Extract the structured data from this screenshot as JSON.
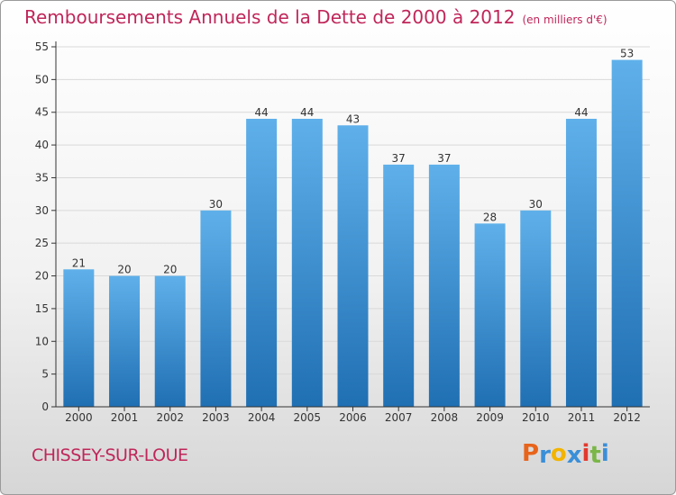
{
  "chart_data": {
    "type": "bar",
    "title": "Remboursements Annuels de la Dette de 2000 à 2012",
    "subtitle": "(en milliers d'€)",
    "categories": [
      "2000",
      "2001",
      "2002",
      "2003",
      "2004",
      "2005",
      "2006",
      "2007",
      "2008",
      "2009",
      "2010",
      "2011",
      "2012"
    ],
    "values": [
      21,
      20,
      20,
      30,
      44,
      44,
      43,
      37,
      37,
      28,
      30,
      44,
      53
    ],
    "yticks": [
      0,
      5,
      10,
      15,
      20,
      25,
      30,
      35,
      40,
      45,
      50,
      55
    ],
    "ylim": [
      0,
      55
    ],
    "xlabel": "",
    "ylabel": "",
    "grid": true
  },
  "footer": {
    "commune": "CHISSEY-SUR-LOUE"
  },
  "logo": {
    "text": "Proxiti",
    "letters": [
      "P",
      "r",
      "o",
      "x",
      "i",
      "t",
      "i"
    ],
    "colors": [
      "#e8641b",
      "#3a8fd8",
      "#f2b400",
      "#3a8fd8",
      "#e23a2e",
      "#7ab648",
      "#3a8fd8"
    ]
  },
  "colors": {
    "title": "#c0265a",
    "bar_top": "#5fb0ea",
    "bar_bottom": "#1f6fb3",
    "grid": "#d9d9d9",
    "axis": "#333333"
  }
}
